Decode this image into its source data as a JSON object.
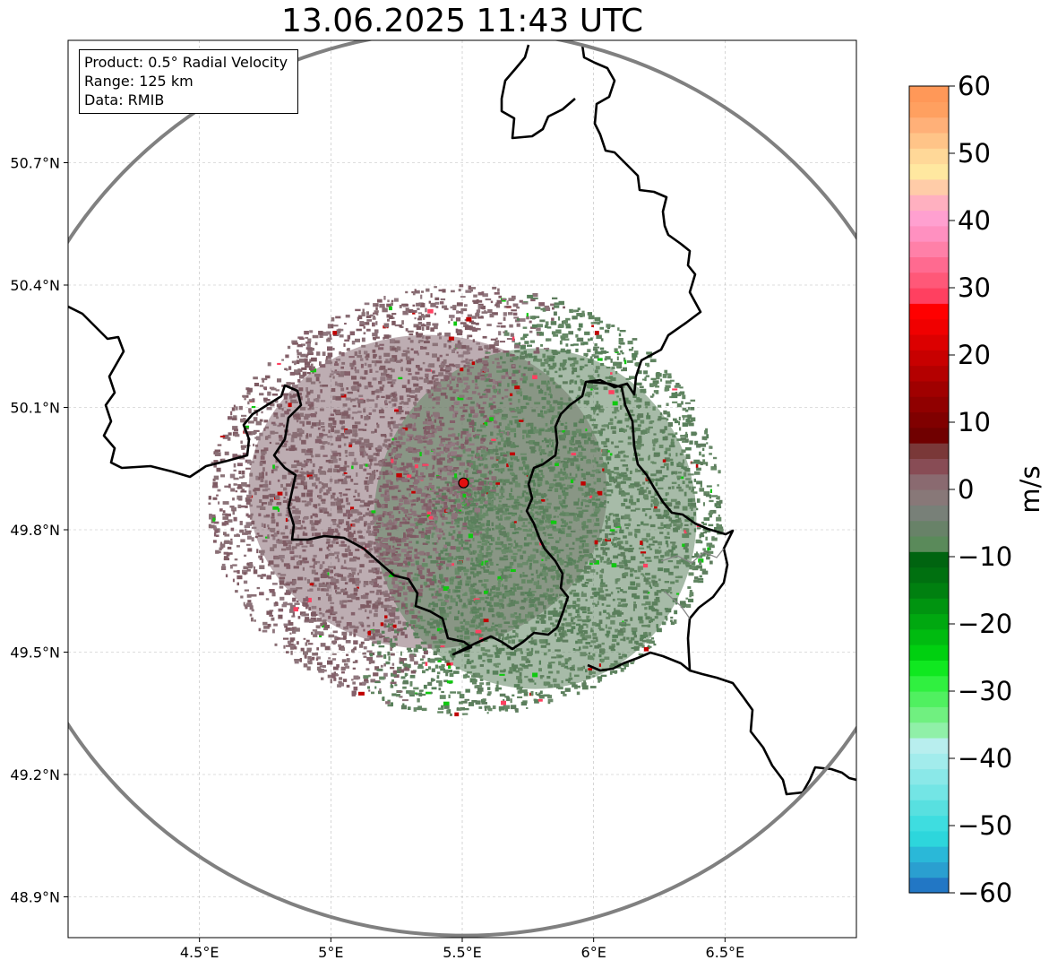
{
  "title": "13.06.2025 11:43 UTC",
  "info_box": {
    "product": "Product: 0.5° Radial Velocity",
    "range": "Range: 125 km",
    "data": "Data: RMIB"
  },
  "map": {
    "lon_range": [
      4.0,
      7.0
    ],
    "lat_range": [
      48.8,
      51.0
    ],
    "x_ticks": [
      {
        "value": 4.5,
        "label": "4.5°E"
      },
      {
        "value": 5.0,
        "label": "5°E"
      },
      {
        "value": 5.5,
        "label": "5.5°E"
      },
      {
        "value": 6.0,
        "label": "6°E"
      },
      {
        "value": 6.5,
        "label": "6.5°E"
      }
    ],
    "y_ticks": [
      {
        "value": 48.9,
        "label": "48.9°N"
      },
      {
        "value": 49.2,
        "label": "49.2°N"
      },
      {
        "value": 49.5,
        "label": "49.5°N"
      },
      {
        "value": 49.8,
        "label": "49.8°N"
      },
      {
        "value": 50.1,
        "label": "50.1°N"
      },
      {
        "value": 50.4,
        "label": "50.4°N"
      },
      {
        "value": 50.7,
        "label": "50.7°N"
      }
    ],
    "radar_site": {
      "lon": 5.505,
      "lat": 49.915
    },
    "grid": true,
    "colors": {
      "range_ring": "#808080",
      "border": "#000000",
      "subregion": "#888888",
      "radar_marker": "#e01010"
    }
  },
  "colorbar": {
    "label": "m/s",
    "min": -60,
    "max": 60,
    "ticks": [
      {
        "value": 60,
        "label": "60"
      },
      {
        "value": 50,
        "label": "50"
      },
      {
        "value": 40,
        "label": "40"
      },
      {
        "value": 30,
        "label": "30"
      },
      {
        "value": 20,
        "label": "20"
      },
      {
        "value": 10,
        "label": "10"
      },
      {
        "value": 0,
        "label": "0"
      },
      {
        "value": -10,
        "label": "−10"
      },
      {
        "value": -20,
        "label": "−20"
      },
      {
        "value": -30,
        "label": "−30"
      },
      {
        "value": -40,
        "label": "−40"
      },
      {
        "value": -50,
        "label": "−50"
      },
      {
        "value": -60,
        "label": "−60"
      }
    ],
    "colors_bottom_to_top": [
      "#2277c5",
      "#2a9fd0",
      "#2ab8d8",
      "#2dd6dc",
      "#3edde0",
      "#58e0e0",
      "#73e5e5",
      "#8ae8e8",
      "#a2ecec",
      "#b8eeee",
      "#90f0a8",
      "#70f080",
      "#50f060",
      "#30f040",
      "#10e820",
      "#00d010",
      "#00bb10",
      "#00a810",
      "#009410",
      "#008010",
      "#007010",
      "#006410",
      "#5a8a5a",
      "#688268",
      "#788078",
      "#887878",
      "#8a6a70",
      "#884c55",
      "#7a3838",
      "#700000",
      "#800000",
      "#900000",
      "#a00000",
      "#b40000",
      "#c80000",
      "#dc0000",
      "#f00000",
      "#ff0000",
      "#ff4060",
      "#ff5878",
      "#ff6a90",
      "#ff80a8",
      "#ff90c0",
      "#ffa0d0",
      "#ffb0c0",
      "#ffcca8",
      "#ffe8a0",
      "#ffd898",
      "#ffc488",
      "#ffb078",
      "#ffa060",
      "#ff9858"
    ]
  }
}
